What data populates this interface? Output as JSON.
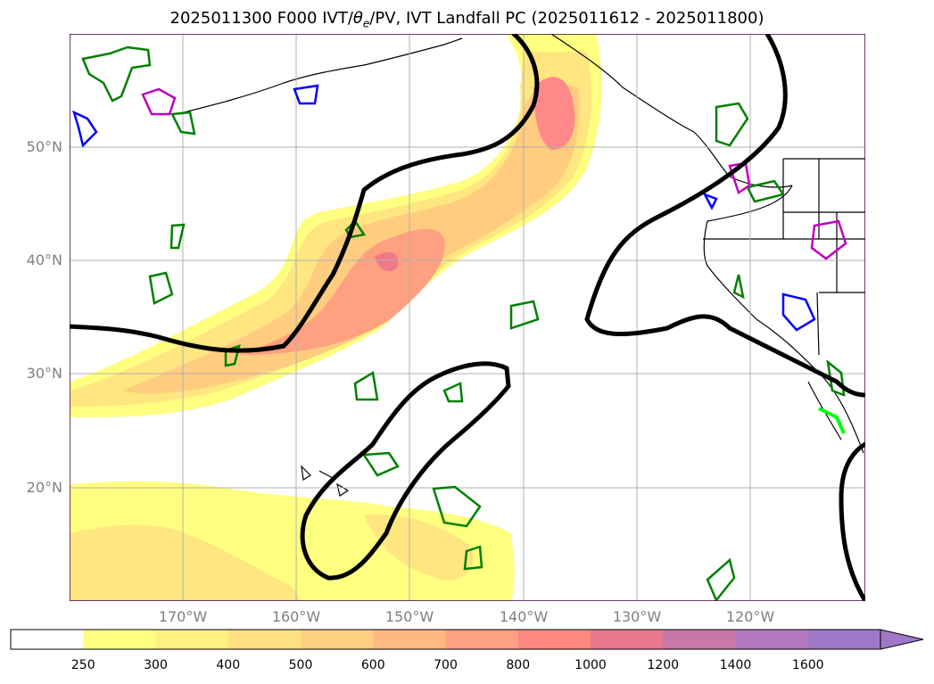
{
  "title": {
    "prefix": "2025011300 F000 IVT/",
    "symbol": "θ",
    "subscript": "e",
    "suffix": "/PV, IVT Landfall PC (2025011612 - 2025011800)"
  },
  "map": {
    "projection": "lat-lon",
    "lon_range": [
      -180,
      -110
    ],
    "lat_range": [
      10,
      60
    ],
    "gridlines": true
  },
  "axes": {
    "lat_labels": [
      "50°N",
      "40°N",
      "30°N",
      "20°N"
    ],
    "lon_labels": [
      "170°W",
      "160°W",
      "150°W",
      "140°W",
      "130°W",
      "120°W"
    ]
  },
  "colorbar": {
    "ticks": [
      "250",
      "300",
      "400",
      "500",
      "600",
      "700",
      "800",
      "1000",
      "1200",
      "1400",
      "1600"
    ],
    "colors": [
      "#ffffff",
      "#ffff80",
      "#fff080",
      "#ffe080",
      "#ffd080",
      "#ffb880",
      "#ffa080",
      "#ff8880",
      "#e87890",
      "#c878a8",
      "#b478c0",
      "#a078c8"
    ],
    "extend": "max"
  },
  "legend_colors": {
    "pv_contour": "#008000",
    "pv_contour_2": "#c000c0",
    "pv_contour_3": "#0000ff",
    "theta_e": "#000000",
    "landfall": "#00ff00"
  }
}
